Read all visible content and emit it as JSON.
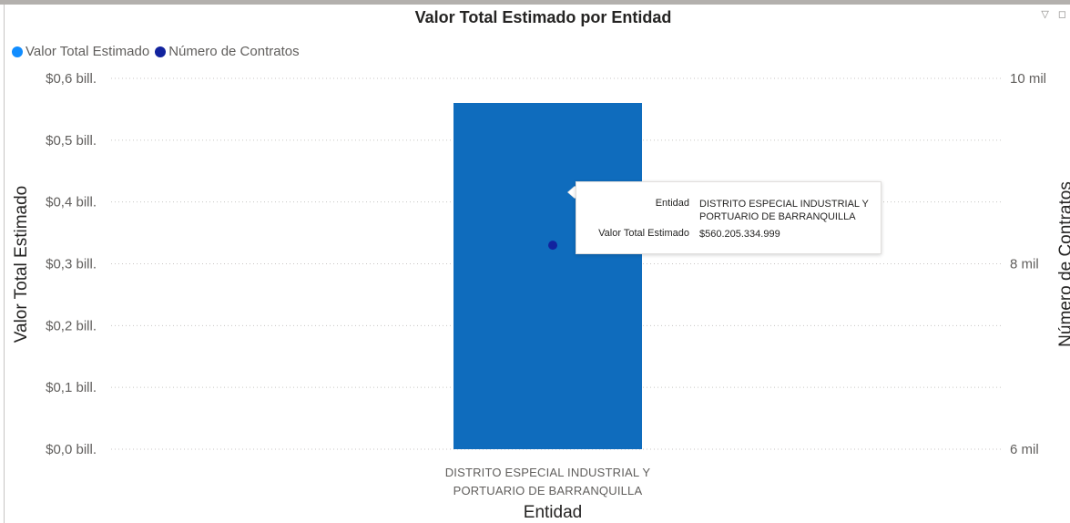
{
  "title": "Valor Total Estimado por Entidad",
  "legend": [
    {
      "label": "Valor Total Estimado",
      "color": "#118dff"
    },
    {
      "label": "Número de Contratos",
      "color": "#12239e"
    }
  ],
  "icons": [
    "filter-icon",
    "focus-mode-icon"
  ],
  "chart_data": {
    "type": "bar",
    "categories": [
      "DISTRITO ESPECIAL INDUSTRIAL Y PORTUARIO DE BARRANQUILLA"
    ],
    "category_label_lines": [
      "DISTRITO ESPECIAL INDUSTRIAL Y",
      "PORTUARIO DE BARRANQUILLA"
    ],
    "series": [
      {
        "name": "Valor Total Estimado",
        "type": "bar",
        "axis": "left",
        "values": [
          560205334999
        ],
        "color": "#0f6cbd"
      },
      {
        "name": "Número de Contratos",
        "type": "scatter",
        "axis": "right",
        "values": [
          8200
        ],
        "color": "#12239e"
      }
    ],
    "xlabel": "Entidad",
    "ylabel": "Valor Total Estimado",
    "y2label": "Número de Contratos",
    "ylim": [
      0,
      600000000000
    ],
    "y2lim": [
      6000,
      10000
    ],
    "yticks": [
      "$0,0 bill.",
      "$0,1 bill.",
      "$0,2 bill.",
      "$0,3 bill.",
      "$0,4 bill.",
      "$0,5 bill.",
      "$0,6 bill."
    ],
    "y2ticks": [
      "6 mil",
      "8 mil",
      "10 mil"
    ],
    "grid": true,
    "legend_position": "top-left"
  },
  "tooltip": {
    "rows": [
      {
        "key": "Entidad",
        "value": "DISTRITO ESPECIAL INDUSTRIAL Y PORTUARIO DE BARRANQUILLA"
      },
      {
        "key": "Valor Total Estimado",
        "value": "$560.205.334.999"
      }
    ]
  }
}
